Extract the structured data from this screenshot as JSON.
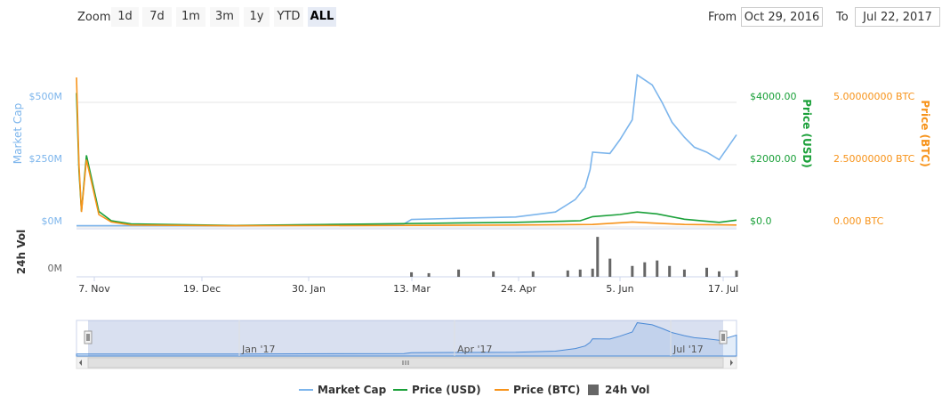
{
  "zoom": {
    "label": "Zoom",
    "buttons": [
      "1d",
      "7d",
      "1m",
      "3m",
      "1y",
      "YTD",
      "ALL"
    ],
    "active": "ALL"
  },
  "range": {
    "from_label": "From",
    "from_value": "Oct 29, 2016",
    "to_label": "To",
    "to_value": "Jul 22, 2017"
  },
  "colors": {
    "market_cap": "#7cb5ec",
    "price_usd": "#1aa039",
    "price_btc": "#f7931a",
    "volume": "#666666"
  },
  "chart_data": {
    "type": "line",
    "x_tick_labels": [
      "7. Nov",
      "19. Dec",
      "30. Jan",
      "13. Mar",
      "24. Apr",
      "5. Jun",
      "17. Jul"
    ],
    "axes": {
      "market_cap": {
        "label": "Market Cap",
        "ticks": [
          "$0M",
          "$250M",
          "$500M"
        ],
        "range": [
          0,
          500
        ]
      },
      "price_usd": {
        "label": "Price (USD)",
        "ticks": [
          "$0.0",
          "$2000.00",
          "$4000.00"
        ],
        "range": [
          0,
          4000
        ]
      },
      "price_btc": {
        "label": "Price (BTC)",
        "ticks": [
          "0.000 BTC",
          "2.50000000 BTC",
          "5.00000000 BTC"
        ],
        "range": [
          0,
          5
        ]
      },
      "volume": {
        "label": "24h Vol",
        "ticks": [
          "0M"
        ]
      }
    },
    "series": [
      {
        "name": "Market Cap",
        "key": "market_cap",
        "axis": "market_cap",
        "x": [
          "2016-10-29",
          "2016-11-02",
          "2016-11-07",
          "2016-11-20",
          "2017-01-01",
          "2017-02-10",
          "2017-03-10",
          "2017-03-13",
          "2017-04-01",
          "2017-04-24",
          "2017-05-10",
          "2017-05-18",
          "2017-05-22",
          "2017-05-24",
          "2017-05-25",
          "2017-06-01",
          "2017-06-05",
          "2017-06-10",
          "2017-06-12",
          "2017-06-18",
          "2017-06-22",
          "2017-06-26",
          "2017-07-01",
          "2017-07-05",
          "2017-07-10",
          "2017-07-15",
          "2017-07-22"
        ],
        "values": [
          5,
          5,
          5,
          5,
          5,
          10,
          12,
          30,
          35,
          40,
          60,
          110,
          160,
          230,
          300,
          295,
          350,
          430,
          610,
          570,
          500,
          420,
          360,
          320,
          300,
          270,
          370
        ]
      },
      {
        "name": "Price (USD)",
        "key": "price_usd",
        "axis": "price_usd",
        "x": [
          "2016-10-29",
          "2016-10-30",
          "2016-10-31",
          "2016-11-02",
          "2016-11-07",
          "2016-11-12",
          "2016-11-20",
          "2017-01-01",
          "2017-03-01",
          "2017-04-24",
          "2017-05-20",
          "2017-05-25",
          "2017-06-05",
          "2017-06-12",
          "2017-06-20",
          "2017-07-01",
          "2017-07-15",
          "2017-07-22"
        ],
        "values": [
          4300,
          1800,
          500,
          2300,
          500,
          200,
          100,
          50,
          100,
          150,
          200,
          330,
          400,
          480,
          420,
          250,
          150,
          220
        ]
      },
      {
        "name": "Price (BTC)",
        "key": "price_btc",
        "axis": "price_btc",
        "x": [
          "2016-10-29",
          "2016-10-30",
          "2016-10-31",
          "2016-11-02",
          "2016-11-07",
          "2016-11-12",
          "2016-11-20",
          "2017-01-01",
          "2017-03-01",
          "2017-04-24",
          "2017-05-25",
          "2017-06-10",
          "2017-06-20",
          "2017-07-01",
          "2017-07-22"
        ],
        "values": [
          6.0,
          2.5,
          0.6,
          2.7,
          0.5,
          0.2,
          0.08,
          0.05,
          0.06,
          0.08,
          0.1,
          0.2,
          0.15,
          0.1,
          0.08
        ]
      }
    ],
    "volume": {
      "name": "24h Vol",
      "x": [
        "2017-03-13",
        "2017-03-20",
        "2017-04-01",
        "2017-04-15",
        "2017-05-01",
        "2017-05-15",
        "2017-05-20",
        "2017-05-25",
        "2017-05-27",
        "2017-06-01",
        "2017-06-10",
        "2017-06-15",
        "2017-06-20",
        "2017-06-25",
        "2017-07-01",
        "2017-07-10",
        "2017-07-15",
        "2017-07-22"
      ],
      "values": [
        5,
        4,
        8,
        6,
        6,
        7,
        8,
        9,
        44,
        20,
        12,
        16,
        18,
        12,
        8,
        10,
        6,
        7
      ]
    },
    "navigator": {
      "labels": [
        "Jan '17",
        "Apr '17",
        "Jul '17"
      ]
    },
    "legend": {
      "position": "bottom-center",
      "items": [
        "Market Cap",
        "Price (USD)",
        "Price (BTC)",
        "24h Vol"
      ]
    }
  }
}
